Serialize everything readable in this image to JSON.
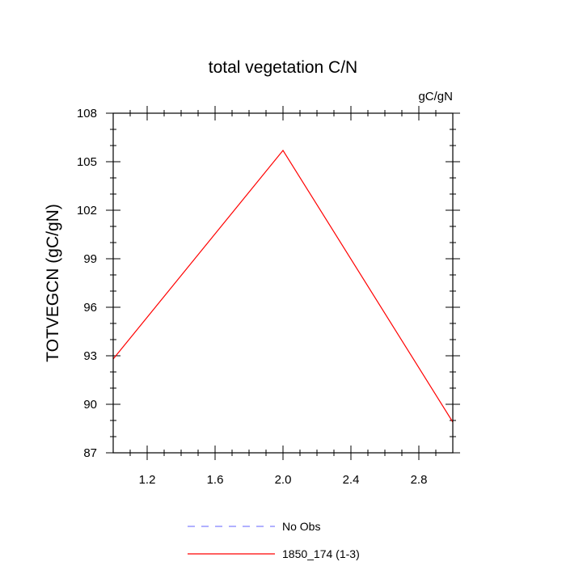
{
  "chart_data": {
    "type": "line",
    "title": "total vegetation C/N",
    "units_label": "gC/gN",
    "xlabel": "",
    "ylabel": "TOTVEGCN  (gC/gN)",
    "xlim": [
      1.0,
      3.0
    ],
    "ylim": [
      87,
      108
    ],
    "xticks": [
      1.2,
      1.6,
      2.0,
      2.4,
      2.8
    ],
    "xtick_labels": [
      "1.2",
      "1.6",
      "2.0",
      "2.4",
      "2.8"
    ],
    "yticks": [
      87,
      90,
      93,
      96,
      99,
      102,
      105,
      108
    ],
    "ytick_labels": [
      "87",
      "90",
      "93",
      "96",
      "99",
      "102",
      "105",
      "108"
    ],
    "grid": false,
    "legend_placement": "bottom",
    "series": [
      {
        "name": "No Obs",
        "color": "#8080ff",
        "dash": "dashed",
        "x": [],
        "y": []
      },
      {
        "name": "1850_174 (1-3)",
        "color": "#ff0000",
        "dash": "solid",
        "x": [
          1.0,
          2.0,
          3.0
        ],
        "y": [
          92.8,
          105.7,
          88.9
        ]
      }
    ]
  }
}
